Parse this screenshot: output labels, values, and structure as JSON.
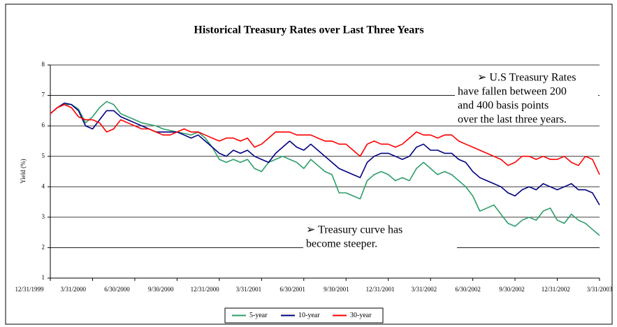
{
  "chart_data": {
    "type": "line",
    "title": "Historical Treasury Rates over Last Three Years",
    "y_label": "Yield (%)",
    "categories": [
      "12/31/1999",
      null,
      null,
      null,
      null,
      null,
      "3/31/2000",
      null,
      null,
      null,
      null,
      null,
      "6/30/2000",
      null,
      null,
      null,
      null,
      null,
      "9/30/2000",
      null,
      null,
      null,
      null,
      null,
      "12/31/2000",
      null,
      null,
      null,
      null,
      null,
      "3/31/2001",
      null,
      null,
      null,
      null,
      null,
      "6/30/2001",
      null,
      null,
      null,
      null,
      null,
      "9/30/2001",
      null,
      null,
      null,
      null,
      null,
      "12/31/2001",
      null,
      null,
      null,
      null,
      null,
      "3/31/2002",
      null,
      null,
      null,
      null,
      null,
      "6/30/2002",
      null,
      null,
      null,
      null,
      null,
      "9/30/2002",
      null,
      null,
      null,
      null,
      null,
      "12/31/2002",
      null,
      null,
      null,
      null,
      null,
      "3/31/2003"
    ],
    "series": [
      {
        "name": "5-year",
        "color": "#2e9e6a",
        "values": [
          6.4,
          6.6,
          6.7,
          6.7,
          6.55,
          6.1,
          6.3,
          6.6,
          6.8,
          6.7,
          6.4,
          6.3,
          6.2,
          6.1,
          6.05,
          6.0,
          5.9,
          5.85,
          5.8,
          5.75,
          5.7,
          5.8,
          5.6,
          5.3,
          4.9,
          4.8,
          4.9,
          4.8,
          4.9,
          4.6,
          4.5,
          4.8,
          4.9,
          5.0,
          4.9,
          4.8,
          4.6,
          4.9,
          4.7,
          4.5,
          4.4,
          3.8,
          3.8,
          3.7,
          3.6,
          4.2,
          4.4,
          4.5,
          4.4,
          4.2,
          4.3,
          4.2,
          4.6,
          4.8,
          4.6,
          4.4,
          4.5,
          4.4,
          4.2,
          4.0,
          3.7,
          3.2,
          3.3,
          3.4,
          3.1,
          2.8,
          2.7,
          2.9,
          3.0,
          2.9,
          3.2,
          3.3,
          2.9,
          2.8,
          3.1,
          2.9,
          2.8,
          2.6,
          2.4
        ]
      },
      {
        "name": "10-year",
        "color": "#000080",
        "values": [
          6.4,
          6.6,
          6.75,
          6.7,
          6.5,
          6.0,
          5.9,
          6.2,
          6.5,
          6.5,
          6.3,
          6.2,
          6.1,
          6.0,
          5.9,
          5.8,
          5.8,
          5.8,
          5.8,
          5.7,
          5.6,
          5.7,
          5.5,
          5.3,
          5.1,
          5.0,
          5.2,
          5.1,
          5.2,
          5.0,
          4.9,
          4.8,
          5.1,
          5.3,
          5.5,
          5.3,
          5.2,
          5.4,
          5.2,
          5.0,
          4.8,
          4.6,
          4.5,
          4.4,
          4.3,
          4.8,
          5.0,
          5.1,
          5.1,
          5.0,
          4.9,
          5.0,
          5.3,
          5.4,
          5.2,
          5.2,
          5.1,
          5.1,
          4.9,
          4.8,
          4.5,
          4.3,
          4.2,
          4.1,
          4.0,
          3.8,
          3.7,
          3.9,
          4.0,
          3.9,
          4.1,
          4.0,
          3.9,
          4.0,
          4.1,
          3.9,
          3.9,
          3.8,
          3.4
        ]
      },
      {
        "name": "30-year",
        "color": "#ff0000",
        "values": [
          6.4,
          6.6,
          6.7,
          6.6,
          6.3,
          6.2,
          6.2,
          6.1,
          5.8,
          5.9,
          6.2,
          6.1,
          6.0,
          5.9,
          5.9,
          5.8,
          5.7,
          5.7,
          5.8,
          5.9,
          5.8,
          5.8,
          5.7,
          5.6,
          5.5,
          5.6,
          5.6,
          5.5,
          5.6,
          5.3,
          5.4,
          5.6,
          5.8,
          5.8,
          5.8,
          5.7,
          5.7,
          5.7,
          5.6,
          5.5,
          5.5,
          5.4,
          5.4,
          5.2,
          5.0,
          5.4,
          5.5,
          5.4,
          5.4,
          5.3,
          5.4,
          5.6,
          5.8,
          5.7,
          5.7,
          5.6,
          5.7,
          5.7,
          5.5,
          5.4,
          5.3,
          5.2,
          5.1,
          5.0,
          4.9,
          4.7,
          4.8,
          5.0,
          5.0,
          4.9,
          5.0,
          4.9,
          4.9,
          5.0,
          4.8,
          4.7,
          5.0,
          4.9,
          4.4
        ]
      }
    ],
    "ylim": [
      1,
      8
    ],
    "yticks": [
      1,
      2,
      3,
      4,
      5,
      6,
      7,
      8
    ],
    "grid": true,
    "legend": "bottom",
    "annotations": [
      {
        "lines": [
          "➢   U.S Treasury Rates",
          "have fallen between 200",
          "and 400 basis points",
          "over the last three years."
        ]
      },
      {
        "lines": [
          "➢   Treasury curve has",
          "become steeper."
        ]
      }
    ]
  }
}
